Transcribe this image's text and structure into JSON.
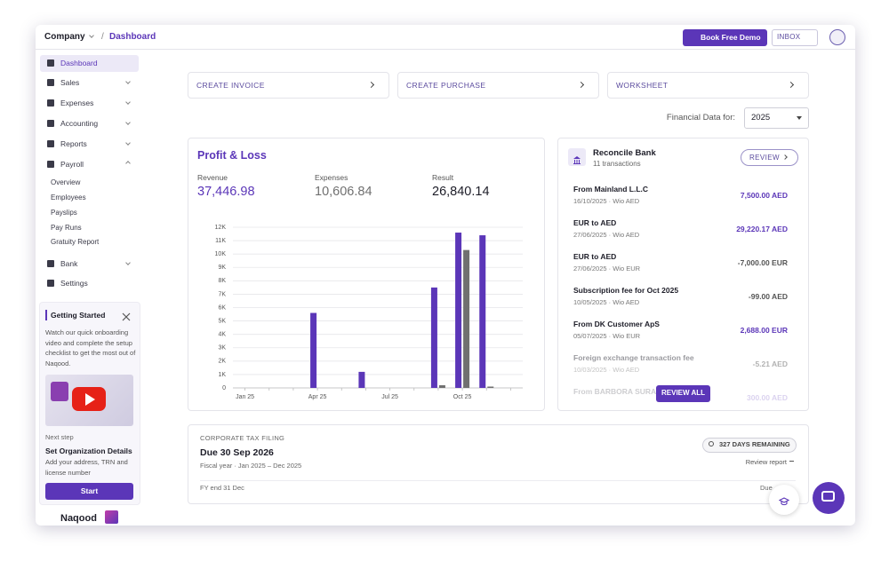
{
  "topbar": {
    "company": "Company",
    "separator": "/",
    "page": "Dashboard",
    "book_demo": "Book Free Demo",
    "inbox": "INBOX"
  },
  "sidebar": {
    "main": [
      "Dashboard",
      "Sales",
      "Expenses",
      "Accounting",
      "Reports",
      "Payroll"
    ],
    "payroll": [
      "Overview",
      "Employees",
      "Payslips",
      "Pay Runs",
      "Gratuity Report"
    ],
    "bottom": [
      "Bank",
      "Settings"
    ]
  },
  "getting_started": {
    "title": "Getting Started",
    "text": "Watch our quick onboarding video and complete the setup checklist to get the most out of Naqood.",
    "next_label": "Next step",
    "next_title": "Set Organization Details",
    "next_text": "Add your address, TRN and license number",
    "button": "Start"
  },
  "logo": "Naqood",
  "actions": [
    "CREATE INVOICE",
    "CREATE PURCHASE",
    "WORKSHEET"
  ],
  "financial_data": {
    "label": "Financial Data for:",
    "year": "2025"
  },
  "profit_loss": {
    "title": "Profit & Loss",
    "metrics": [
      {
        "label": "Revenue",
        "value": "37,446.98"
      },
      {
        "label": "Expenses",
        "value": "10,606.84"
      },
      {
        "label": "Result",
        "value": "26,840.14"
      }
    ]
  },
  "chart_data": {
    "type": "bar",
    "categories": [
      "Jan 25",
      null,
      null,
      "Apr 25",
      null,
      null,
      "Jul 25",
      null,
      null,
      "Oct 25",
      null,
      null
    ],
    "series": [
      {
        "color": "#5b36b8",
        "values": [
          0,
          0,
          0,
          5600,
          0,
          1200,
          0,
          0,
          7500,
          11600,
          11400,
          0
        ]
      },
      {
        "color": "#707070",
        "values": [
          0,
          0,
          0,
          0,
          0,
          0,
          0,
          0,
          200,
          10300,
          100,
          0
        ]
      }
    ],
    "ylim": [
      0,
      12000
    ],
    "yticks": [
      0,
      {
        "value": 1000,
        "label": "1K"
      },
      {
        "value": 2000,
        "label": "2K"
      },
      {
        "value": 3000,
        "label": "3K"
      },
      {
        "value": 4000,
        "label": "4K"
      },
      {
        "value": 5000,
        "label": "5K"
      },
      {
        "value": 6000,
        "label": "6K"
      },
      {
        "value": 7000,
        "label": "7K"
      },
      {
        "value": 8000,
        "label": "8K"
      },
      {
        "value": 9000,
        "label": "9K"
      },
      {
        "value": 10000,
        "label": "10K"
      },
      {
        "value": 11000,
        "label": "11K"
      },
      {
        "value": 12000,
        "label": "12K"
      }
    ],
    "grid": true
  },
  "reconcile": {
    "title": "Reconcile Bank",
    "subtitle": "11 transactions",
    "review": "REVIEW",
    "review_all": "REVIEW ALL",
    "transactions": [
      {
        "name": "From Mainland L.L.C",
        "meta": "16/10/2025 · Wio AED",
        "amount": "7,500.00 AED"
      },
      {
        "name": "EUR to AED",
        "meta": "27/06/2025 · Wio AED",
        "amount": "29,220.17 AED"
      },
      {
        "name": "EUR to AED",
        "meta": "27/06/2025 · Wio EUR",
        "amount": "-7,000.00 EUR"
      },
      {
        "name": "Subscription fee for Oct 2025",
        "meta": "10/05/2025 · Wio AED",
        "amount": "-99.00 AED"
      },
      {
        "name": "From DK Customer ApS",
        "meta": "05/07/2025 · Wio EUR",
        "amount": "2,688.00 EUR"
      },
      {
        "name": "Foreign exchange transaction fee",
        "meta": "10/03/2025 · Wio AED",
        "amount": "-5.21 AED"
      },
      {
        "name": "From BARBORA SURA",
        "amount": "300.00 AED"
      }
    ]
  },
  "tax": {
    "label": "CORPORATE TAX FILING",
    "due": "Due 30 Sep 2026",
    "fiscal": "Fiscal year · Jan 2025 – Dec 2025",
    "remaining": "327 DAYS REMAINING",
    "review": "Review report",
    "fy_end": "FY end 31 Dec",
    "due_short": "Due"
  }
}
